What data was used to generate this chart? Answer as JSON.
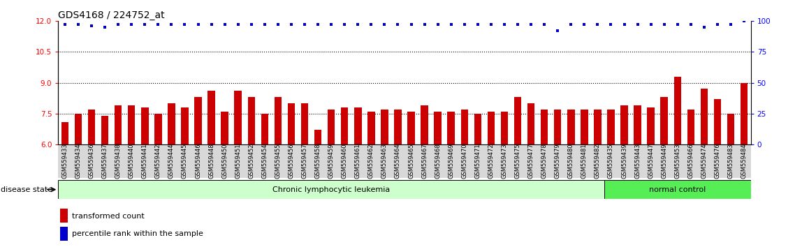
{
  "title": "GDS4168 / 224752_at",
  "samples": [
    "GSM559433",
    "GSM559434",
    "GSM559436",
    "GSM559437",
    "GSM559438",
    "GSM559440",
    "GSM559441",
    "GSM559442",
    "GSM559444",
    "GSM559445",
    "GSM559446",
    "GSM559448",
    "GSM559450",
    "GSM559451",
    "GSM559452",
    "GSM559454",
    "GSM559455",
    "GSM559456",
    "GSM559457",
    "GSM559458",
    "GSM559459",
    "GSM559460",
    "GSM559461",
    "GSM559462",
    "GSM559463",
    "GSM559464",
    "GSM559465",
    "GSM559467",
    "GSM559468",
    "GSM559469",
    "GSM559470",
    "GSM559471",
    "GSM559472",
    "GSM559473",
    "GSM559475",
    "GSM559477",
    "GSM559478",
    "GSM559479",
    "GSM559480",
    "GSM559481",
    "GSM559482",
    "GSM559435",
    "GSM559439",
    "GSM559443",
    "GSM559447",
    "GSM559449",
    "GSM559453",
    "GSM559466",
    "GSM559474",
    "GSM559476",
    "GSM559483",
    "GSM559484"
  ],
  "bar_values": [
    7.1,
    7.5,
    7.7,
    7.4,
    7.9,
    7.9,
    7.8,
    7.5,
    8.0,
    7.8,
    8.3,
    8.6,
    7.6,
    8.6,
    8.3,
    7.5,
    8.3,
    8.0,
    8.0,
    6.7,
    7.7,
    7.8,
    7.8,
    7.6,
    7.7,
    7.7,
    7.6,
    7.9,
    7.6,
    7.6,
    7.7,
    7.5,
    7.6,
    7.6,
    8.3,
    8.0,
    7.7,
    7.7,
    7.7,
    7.7,
    7.7,
    7.7,
    7.9,
    7.9,
    7.8,
    8.3,
    9.3,
    7.7,
    8.7,
    8.2,
    7.5,
    9.0
  ],
  "percentile_values": [
    97,
    97,
    96,
    95,
    97,
    97,
    97,
    97,
    97,
    97,
    97,
    97,
    97,
    97,
    97,
    97,
    97,
    97,
    97,
    97,
    97,
    97,
    97,
    97,
    97,
    97,
    97,
    97,
    97,
    97,
    97,
    97,
    97,
    97,
    97,
    97,
    97,
    92,
    97,
    97,
    97,
    97,
    97,
    97,
    97,
    97,
    97,
    97,
    95,
    97,
    97,
    100
  ],
  "n_cll": 41,
  "bar_color": "#cc0000",
  "percentile_color": "#0000cc",
  "cll_bg_color": "#ccffcc",
  "nc_bg_color": "#55ee55",
  "ylim_left": [
    6,
    12
  ],
  "ylim_right": [
    0,
    100
  ],
  "yticks_left": [
    6,
    7.5,
    9,
    10.5,
    12
  ],
  "yticks_right": [
    0,
    25,
    50,
    75,
    100
  ],
  "dotted_hlines": [
    7.5,
    9.0,
    10.5
  ],
  "title_fontsize": 10,
  "xtick_fontsize": 6,
  "ytick_fontsize": 7.5,
  "legend_fontsize": 8,
  "ds_text_fontsize": 8,
  "bar_bottom": 6,
  "xticklabel_bg": "#d8d8d8"
}
